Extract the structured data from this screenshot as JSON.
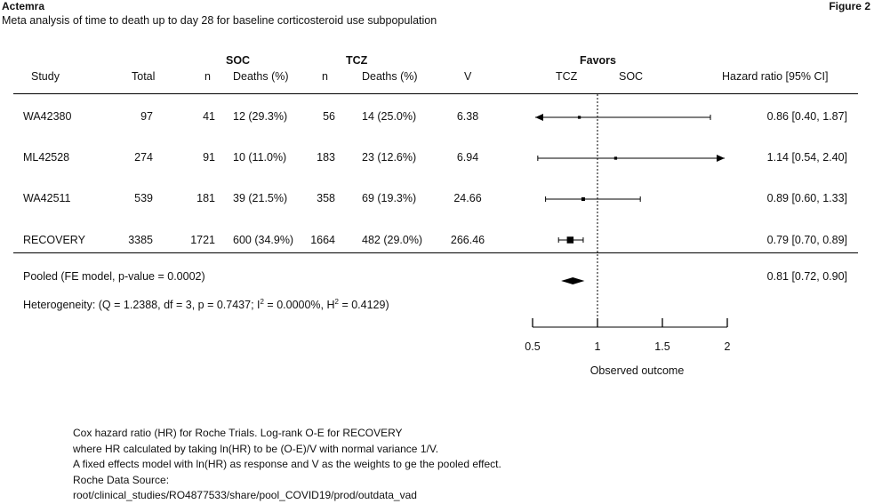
{
  "header": {
    "brand": "Actemra",
    "figure_label": "Figure 2",
    "subtitle": "Meta analysis of time to death up to day 28 for baseline corticosteroid use subpopulation"
  },
  "columns": {
    "soc_group": "SOC",
    "tcz_group": "TCZ",
    "favors": "Favors",
    "study": "Study",
    "total": "Total",
    "soc_n": "n",
    "soc_deaths": "Deaths (%)",
    "tcz_n": "n",
    "tcz_deaths": "Deaths (%)",
    "v": "V",
    "favors_tcz": "TCZ",
    "favors_soc": "SOC",
    "hr": "Hazard ratio [95% CI]"
  },
  "rows": [
    {
      "study": "WA42380",
      "total": "97",
      "soc_n": "41",
      "soc_deaths": "12 (29.3%)",
      "tcz_n": "56",
      "tcz_deaths": "14 (25.0%)",
      "v": "6.38",
      "hr_text": "0.86 [0.40, 1.87]"
    },
    {
      "study": "ML42528",
      "total": "274",
      "soc_n": "91",
      "soc_deaths": "10 (11.0%)",
      "tcz_n": "183",
      "tcz_deaths": "23 (12.6%)",
      "v": "6.94",
      "hr_text": "1.14 [0.54, 2.40]"
    },
    {
      "study": "WA42511",
      "total": "539",
      "soc_n": "181",
      "soc_deaths": "39 (21.5%)",
      "tcz_n": "358",
      "tcz_deaths": "69 (19.3%)",
      "v": "24.66",
      "hr_text": "0.89 [0.60, 1.33]"
    },
    {
      "study": "RECOVERY",
      "total": "3385",
      "soc_n": "1721",
      "soc_deaths": "600 (34.9%)",
      "tcz_n": "1664",
      "tcz_deaths": "482 (29.0%)",
      "v": "266.46",
      "hr_text": "0.79 [0.70, 0.89]"
    }
  ],
  "pooled": {
    "label": "Pooled (FE model, p-value = 0.0002)",
    "hr_text": "0.81 [0.72, 0.90]"
  },
  "heterogeneity": {
    "prefix": "Heterogeneity: (Q = 1.2388, df = 3, p = 0.7437; I",
    "sup1": "2",
    "mid": " = 0.0000%, H",
    "sup2": "2",
    "suffix": " = 0.4129)"
  },
  "chart_data": {
    "type": "forest",
    "xlabel": "Observed outcome",
    "xlim": [
      0.5,
      2
    ],
    "ticks": [
      "0.5",
      "1",
      "1.5",
      "2"
    ],
    "tick_values": [
      0.5,
      1,
      1.5,
      2
    ],
    "reference_line": 1,
    "studies": [
      {
        "name": "WA42380",
        "hr": 0.86,
        "lo": 0.4,
        "hi": 1.87,
        "weight": 6.38
      },
      {
        "name": "ML42528",
        "hr": 1.14,
        "lo": 0.54,
        "hi": 2.4,
        "weight": 6.94
      },
      {
        "name": "WA42511",
        "hr": 0.89,
        "lo": 0.6,
        "hi": 1.33,
        "weight": 24.66
      },
      {
        "name": "RECOVERY",
        "hr": 0.79,
        "lo": 0.7,
        "hi": 0.89,
        "weight": 266.46
      }
    ],
    "pooled": {
      "name": "Pooled",
      "hr": 0.81,
      "lo": 0.72,
      "hi": 0.9
    }
  },
  "footnotes": [
    "Cox hazard ratio (HR) for Roche Trials. Log-rank O-E for RECOVERY",
    "where HR calculated by taking ln(HR) to be (O-E)/V with normal variance 1/V.",
    "A fixed effects model with ln(HR) as response and V as the weights to ge the pooled effect.",
    "Roche Data Source:",
    "root/clinical_studies/RO4877533/share/pool_COVID19/prod/outdata_vad"
  ]
}
